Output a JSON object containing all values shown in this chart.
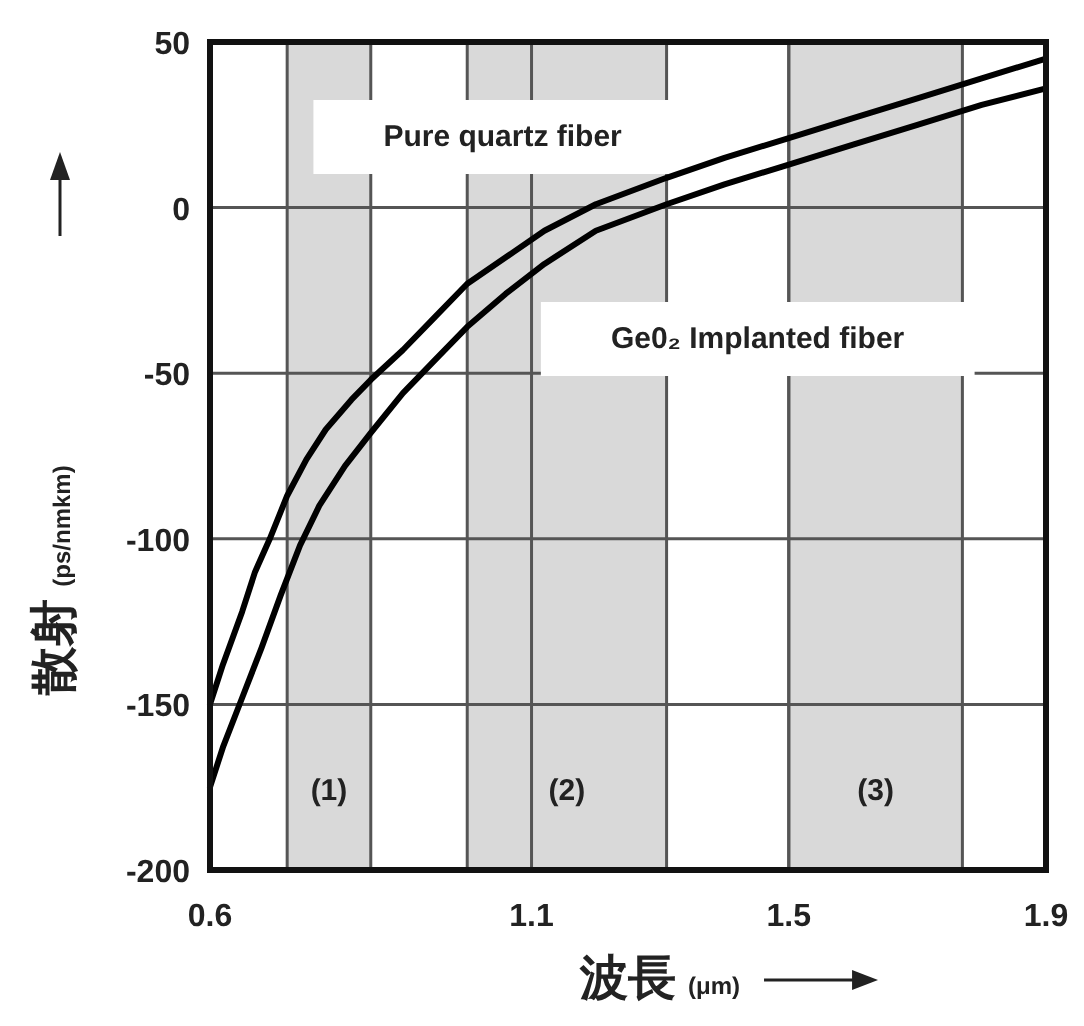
{
  "chart_data": {
    "type": "line",
    "xlabel": "波長 (μm)",
    "ylabel": "散射 (ps/nmkm)",
    "xlim": [
      0.6,
      1.9
    ],
    "xticks": [
      0.6,
      1.1,
      1.5,
      1.9
    ],
    "ylim": [
      -200,
      50
    ],
    "yticks": [
      -200,
      -150,
      -100,
      -50,
      0,
      50
    ],
    "grid": true,
    "line_style": "solid",
    "series": [
      {
        "color": "#000000",
        "x": [
          0.6,
          0.62,
          0.65,
          0.67,
          0.693,
          0.72,
          0.75,
          0.78,
          0.82,
          0.85,
          0.9,
          0.95,
          1.0,
          1.06,
          1.12,
          1.2,
          1.31,
          1.4,
          1.5,
          1.6,
          1.7,
          1.8,
          1.9
        ],
        "values": [
          -150,
          -138,
          -122,
          -110,
          -100,
          -87,
          -76,
          -67,
          -58,
          -52,
          -43,
          -33,
          -23,
          -15,
          -7,
          1,
          9,
          15,
          21,
          27,
          33,
          39,
          45
        ]
      },
      {
        "color": "#000000",
        "x": [
          0.6,
          0.62,
          0.65,
          0.68,
          0.71,
          0.74,
          0.77,
          0.81,
          0.85,
          0.9,
          0.95,
          1.0,
          1.06,
          1.12,
          1.2,
          1.31,
          1.4,
          1.5,
          1.6,
          1.7,
          1.8,
          1.9
        ],
        "values": [
          -175,
          -163,
          -148,
          -133,
          -117,
          -102,
          -90,
          -78,
          -68,
          -56,
          -46,
          -36,
          -26,
          -17,
          -7,
          1,
          7,
          13,
          19,
          25,
          31,
          36
        ]
      }
    ],
    "bands": [
      {
        "axis": "x",
        "from": 0.72,
        "to": 0.85,
        "label": "(1)",
        "color": "#d9d9d9"
      },
      {
        "axis": "x",
        "from": 1.0,
        "to": 1.31,
        "label": "(2)",
        "color": "#d9d9d9"
      },
      {
        "axis": "x",
        "from": 1.5,
        "to": 1.77,
        "label": "(3)",
        "color": "#d9d9d9"
      }
    ],
    "annotations": [
      "Pure quartz fiber",
      "Ge0₂ Implanted fiber"
    ]
  }
}
